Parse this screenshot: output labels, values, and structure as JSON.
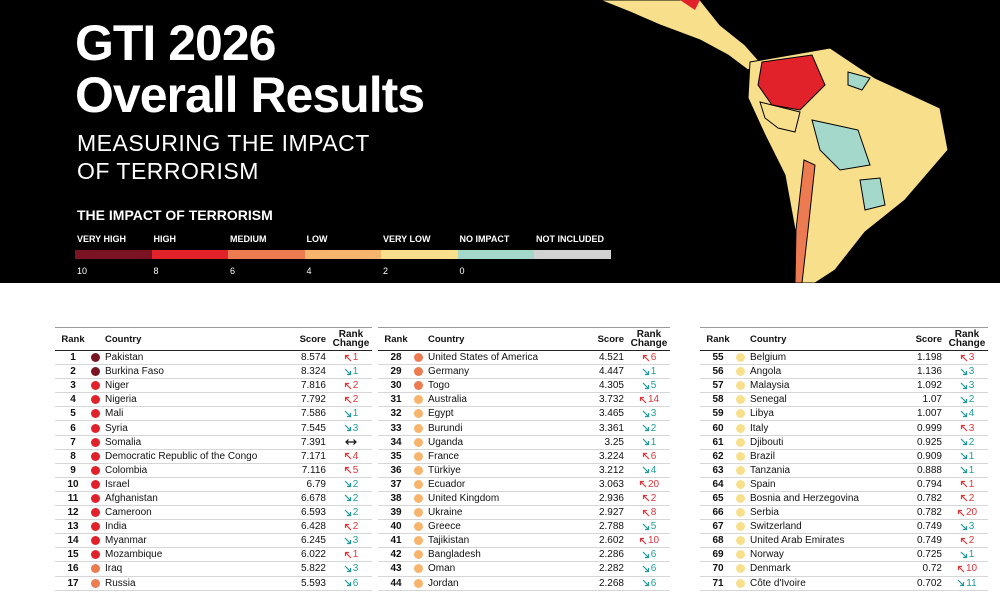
{
  "header": {
    "title_lines": [
      "GTI 2026",
      "Overall Results"
    ],
    "subtitle_lines": [
      "MEASURING THE IMPACT",
      "OF TERRORISM"
    ]
  },
  "legend": {
    "title": "THE IMPACT OF TERRORISM",
    "items": [
      {
        "label": "VERY HIGH",
        "color": "#7a1424"
      },
      {
        "label": "HIGH",
        "color": "#e1222b"
      },
      {
        "label": "MEDIUM",
        "color": "#ec7b52"
      },
      {
        "label": "LOW",
        "color": "#f6b46c"
      },
      {
        "label": "VERY LOW",
        "color": "#f7df8c"
      },
      {
        "label": "NO IMPACT",
        "color": "#a3d8ca"
      },
      {
        "label": "NOT INCLUDED",
        "color": "#d2d2d2"
      }
    ],
    "ticks": [
      10,
      8,
      6,
      4,
      2,
      0
    ]
  },
  "columns": [
    "Rank",
    "Country",
    "Score",
    "Rank Change"
  ],
  "tables": [
    {
      "rows": [
        {
          "rank": 1,
          "country": "Pakistan",
          "score": 8.574,
          "trend": "up",
          "change": 1
        },
        {
          "rank": 2,
          "country": "Burkina Faso",
          "score": 8.324,
          "trend": "down",
          "change": 1
        },
        {
          "rank": 3,
          "country": "Niger",
          "score": 7.816,
          "trend": "up",
          "change": 2
        },
        {
          "rank": 4,
          "country": "Nigeria",
          "score": 7.792,
          "trend": "up",
          "change": 2
        },
        {
          "rank": 5,
          "country": "Mali",
          "score": 7.586,
          "trend": "down",
          "change": 1
        },
        {
          "rank": 6,
          "country": "Syria",
          "score": 7.545,
          "trend": "down",
          "change": 3
        },
        {
          "rank": 7,
          "country": "Somalia",
          "score": 7.391,
          "trend": "none"
        },
        {
          "rank": 8,
          "country": "Democratic Republic of the Congo",
          "score": 7.171,
          "trend": "up",
          "change": 4
        },
        {
          "rank": 9,
          "country": "Colombia",
          "score": 7.116,
          "trend": "up",
          "change": 5
        },
        {
          "rank": 10,
          "country": "Israel",
          "score": 6.79,
          "trend": "down",
          "change": 2
        },
        {
          "rank": 11,
          "country": "Afghanistan",
          "score": 6.678,
          "trend": "down",
          "change": 2
        },
        {
          "rank": 12,
          "country": "Cameroon",
          "score": 6.593,
          "trend": "down",
          "change": 2
        },
        {
          "rank": 13,
          "country": "India",
          "score": 6.428,
          "trend": "up",
          "change": 2
        },
        {
          "rank": 14,
          "country": "Myanmar",
          "score": 6.245,
          "trend": "down",
          "change": 3
        },
        {
          "rank": 15,
          "country": "Mozambique",
          "score": 6.022,
          "trend": "up",
          "change": 1
        },
        {
          "rank": 16,
          "country": "Iraq",
          "score": 5.822,
          "trend": "down",
          "change": 3
        },
        {
          "rank": 17,
          "country": "Russia",
          "score": 5.593,
          "trend": "down",
          "change": 6
        }
      ]
    },
    {
      "rows": [
        {
          "rank": 28,
          "country": "United States of America",
          "score": 4.521,
          "trend": "up",
          "change": 6
        },
        {
          "rank": 29,
          "country": "Germany",
          "score": 4.447,
          "trend": "down",
          "change": 1
        },
        {
          "rank": 30,
          "country": "Togo",
          "score": 4.305,
          "trend": "down",
          "change": 5
        },
        {
          "rank": 31,
          "country": "Australia",
          "score": 3.732,
          "trend": "up",
          "change": 14
        },
        {
          "rank": 32,
          "country": "Egypt",
          "score": 3.465,
          "trend": "down",
          "change": 3
        },
        {
          "rank": 33,
          "country": "Burundi",
          "score": 3.361,
          "trend": "down",
          "change": 2
        },
        {
          "rank": 34,
          "country": "Uganda",
          "score": 3.25,
          "trend": "down",
          "change": 1
        },
        {
          "rank": 35,
          "country": "France",
          "score": 3.224,
          "trend": "up",
          "change": 6
        },
        {
          "rank": 36,
          "country": "Türkiye",
          "score": 3.212,
          "trend": "down",
          "change": 4
        },
        {
          "rank": 37,
          "country": "Ecuador",
          "score": 3.063,
          "trend": "up",
          "change": 20
        },
        {
          "rank": 38,
          "country": "United Kingdom",
          "score": 2.936,
          "trend": "up",
          "change": 2
        },
        {
          "rank": 39,
          "country": "Ukraine",
          "score": 2.927,
          "trend": "up",
          "change": 8
        },
        {
          "rank": 40,
          "country": "Greece",
          "score": 2.788,
          "trend": "down",
          "change": 5
        },
        {
          "rank": 41,
          "country": "Tajikistan",
          "score": 2.602,
          "trend": "up",
          "change": 10
        },
        {
          "rank": 42,
          "country": "Bangladesh",
          "score": 2.286,
          "trend": "down",
          "change": 6
        },
        {
          "rank": 43,
          "country": "Oman",
          "score": 2.282,
          "trend": "down",
          "change": 6
        },
        {
          "rank": 44,
          "country": "Jordan",
          "score": 2.268,
          "trend": "down",
          "change": 6
        }
      ]
    },
    {
      "rows": [
        {
          "rank": 55,
          "country": "Belgium",
          "score": 1.198,
          "trend": "up",
          "change": 3
        },
        {
          "rank": 56,
          "country": "Angola",
          "score": 1.136,
          "trend": "down",
          "change": 3
        },
        {
          "rank": 57,
          "country": "Malaysia",
          "score": 1.092,
          "trend": "down",
          "change": 3
        },
        {
          "rank": 58,
          "country": "Senegal",
          "score": 1.07,
          "trend": "down",
          "change": 2
        },
        {
          "rank": 59,
          "country": "Libya",
          "score": 1.007,
          "trend": "down",
          "change": 4
        },
        {
          "rank": 60,
          "country": "Italy",
          "score": 0.999,
          "trend": "up",
          "change": 3
        },
        {
          "rank": 61,
          "country": "Djibouti",
          "score": 0.925,
          "trend": "down",
          "change": 2
        },
        {
          "rank": 62,
          "country": "Brazil",
          "score": 0.909,
          "trend": "down",
          "change": 1
        },
        {
          "rank": 63,
          "country": "Tanzania",
          "score": 0.888,
          "trend": "down",
          "change": 1
        },
        {
          "rank": 64,
          "country": "Spain",
          "score": 0.794,
          "trend": "up",
          "change": 1
        },
        {
          "rank": 65,
          "country": "Bosnia and Herzegovina",
          "score": 0.782,
          "trend": "up",
          "change": 2
        },
        {
          "rank": 66,
          "country": "Serbia",
          "score": 0.782,
          "trend": "up",
          "change": 20
        },
        {
          "rank": 67,
          "country": "Switzerland",
          "score": 0.749,
          "trend": "down",
          "change": 3
        },
        {
          "rank": 68,
          "country": "United Arab Emirates",
          "score": 0.749,
          "trend": "up",
          "change": 2
        },
        {
          "rank": 69,
          "country": "Norway",
          "score": 0.725,
          "trend": "down",
          "change": 1
        },
        {
          "rank": 70,
          "country": "Denmark",
          "score": 0.72,
          "trend": "up",
          "change": 10
        },
        {
          "rank": 71,
          "country": "Côte d'Ivoire",
          "score": 0.702,
          "trend": "down",
          "change": 11
        }
      ]
    }
  ]
}
